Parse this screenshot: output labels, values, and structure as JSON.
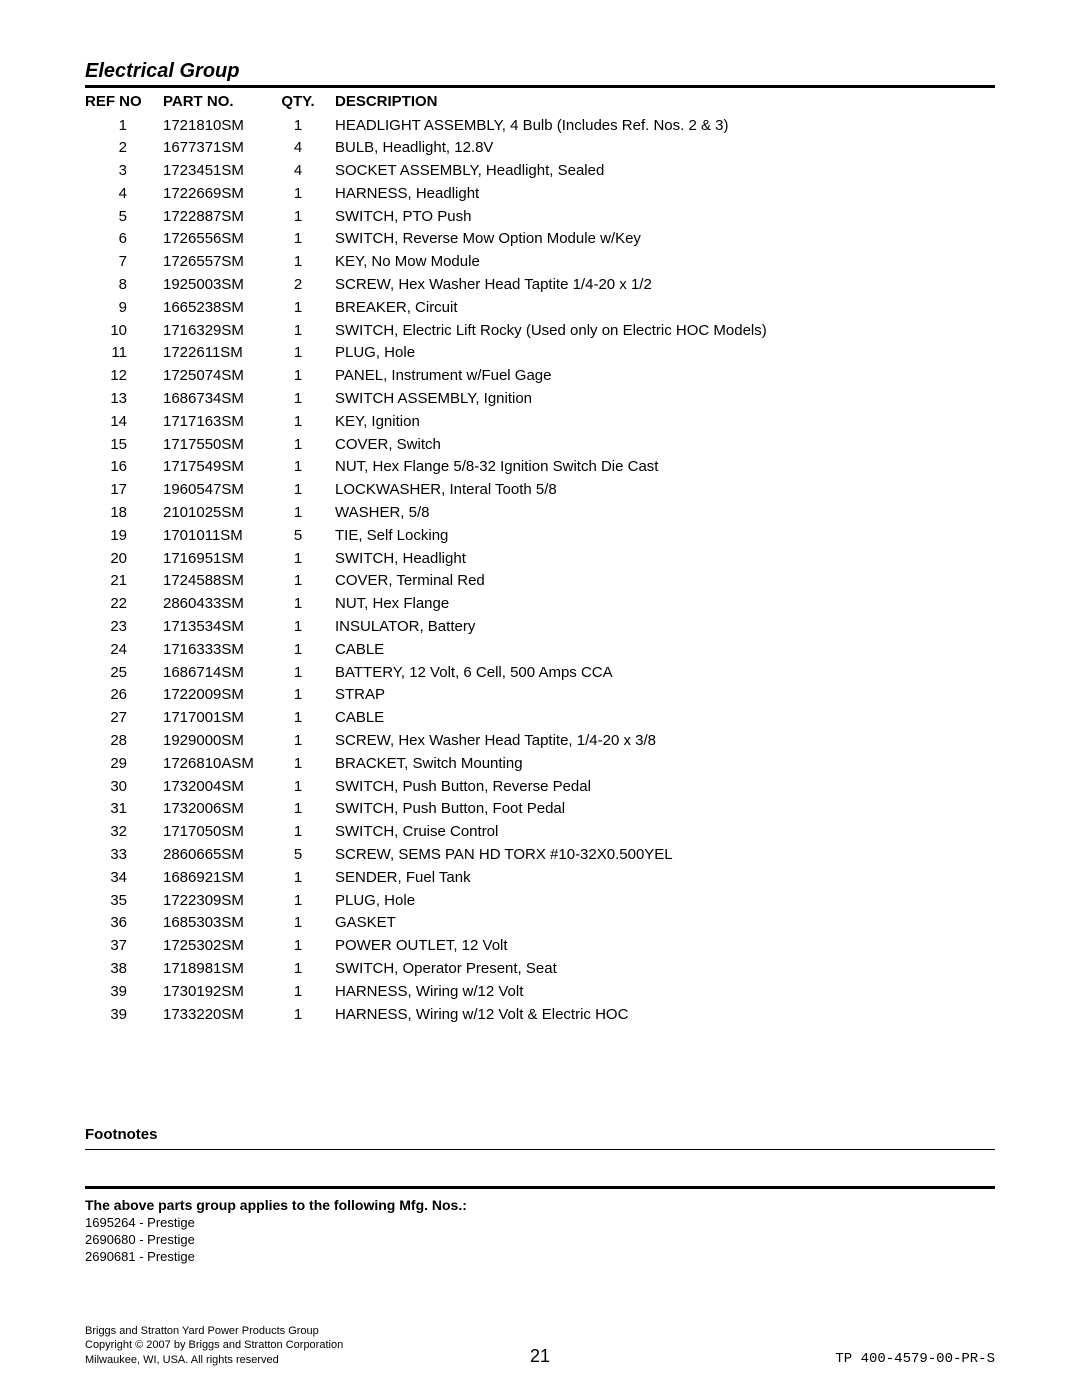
{
  "group_title": "Electrical Group",
  "headers": {
    "refno": "REF NO",
    "partno": "PART NO.",
    "qty": "QTY.",
    "desc": "DESCRIPTION"
  },
  "rows": [
    {
      "ref": "1",
      "part": "1721810SM",
      "qty": "1",
      "desc": "HEADLIGHT ASSEMBLY, 4 Bulb (Includes Ref. Nos. 2 & 3)"
    },
    {
      "ref": "2",
      "part": "1677371SM",
      "qty": "4",
      "desc": "BULB, Headlight, 12.8V"
    },
    {
      "ref": "3",
      "part": "1723451SM",
      "qty": "4",
      "desc": "SOCKET ASSEMBLY, Headlight, Sealed"
    },
    {
      "ref": "4",
      "part": "1722669SM",
      "qty": "1",
      "desc": "HARNESS, Headlight"
    },
    {
      "ref": "5",
      "part": "1722887SM",
      "qty": "1",
      "desc": "SWITCH, PTO Push"
    },
    {
      "ref": "6",
      "part": "1726556SM",
      "qty": "1",
      "desc": "SWITCH, Reverse Mow Option Module w/Key"
    },
    {
      "ref": "7",
      "part": "1726557SM",
      "qty": "1",
      "desc": "KEY, No Mow Module"
    },
    {
      "ref": "8",
      "part": "1925003SM",
      "qty": "2",
      "desc": "SCREW, Hex Washer Head Taptite 1/4-20 x 1/2"
    },
    {
      "ref": "9",
      "part": "1665238SM",
      "qty": "1",
      "desc": "BREAKER, Circuit"
    },
    {
      "ref": "10",
      "part": "1716329SM",
      "qty": "1",
      "desc": "SWITCH, Electric Lift Rocky (Used only on Electric HOC Models)"
    },
    {
      "ref": "11",
      "part": "1722611SM",
      "qty": "1",
      "desc": "PLUG, Hole"
    },
    {
      "ref": "12",
      "part": "1725074SM",
      "qty": "1",
      "desc": "PANEL, Instrument w/Fuel Gage"
    },
    {
      "ref": "13",
      "part": "1686734SM",
      "qty": "1",
      "desc": "SWITCH ASSEMBLY, Ignition"
    },
    {
      "ref": "14",
      "part": "1717163SM",
      "qty": "1",
      "desc": "KEY, Ignition"
    },
    {
      "ref": "15",
      "part": "1717550SM",
      "qty": "1",
      "desc": "COVER, Switch"
    },
    {
      "ref": "16",
      "part": "1717549SM",
      "qty": "1",
      "desc": "NUT, Hex Flange 5/8-32 Ignition Switch Die Cast"
    },
    {
      "ref": "17",
      "part": "1960547SM",
      "qty": "1",
      "desc": "LOCKWASHER, Interal Tooth 5/8"
    },
    {
      "ref": "18",
      "part": "2101025SM",
      "qty": "1",
      "desc": "WASHER, 5/8"
    },
    {
      "ref": "19",
      "part": "1701011SM",
      "qty": "5",
      "desc": "TIE, Self Locking"
    },
    {
      "ref": "20",
      "part": "1716951SM",
      "qty": "1",
      "desc": "SWITCH, Headlight"
    },
    {
      "ref": "21",
      "part": "1724588SM",
      "qty": "1",
      "desc": "COVER, Terminal Red"
    },
    {
      "ref": "22",
      "part": "2860433SM",
      "qty": "1",
      "desc": "NUT, Hex Flange"
    },
    {
      "ref": "23",
      "part": "1713534SM",
      "qty": "1",
      "desc": "INSULATOR, Battery"
    },
    {
      "ref": "24",
      "part": "1716333SM",
      "qty": "1",
      "desc": "CABLE"
    },
    {
      "ref": "25",
      "part": "1686714SM",
      "qty": "1",
      "desc": "BATTERY, 12 Volt, 6 Cell, 500 Amps CCA"
    },
    {
      "ref": "26",
      "part": "1722009SM",
      "qty": "1",
      "desc": "STRAP"
    },
    {
      "ref": "27",
      "part": "1717001SM",
      "qty": "1",
      "desc": "CABLE"
    },
    {
      "ref": "28",
      "part": "1929000SM",
      "qty": "1",
      "desc": "SCREW, Hex Washer Head Taptite, 1/4-20 x 3/8"
    },
    {
      "ref": "29",
      "part": "1726810ASM",
      "qty": "1",
      "desc": "BRACKET, Switch Mounting"
    },
    {
      "ref": "30",
      "part": "1732004SM",
      "qty": "1",
      "desc": "SWITCH, Push Button, Reverse Pedal"
    },
    {
      "ref": "31",
      "part": "1732006SM",
      "qty": "1",
      "desc": "SWITCH, Push Button, Foot Pedal"
    },
    {
      "ref": "32",
      "part": "1717050SM",
      "qty": "1",
      "desc": "SWITCH, Cruise Control"
    },
    {
      "ref": "33",
      "part": "2860665SM",
      "qty": "5",
      "desc": "SCREW, SEMS PAN HD TORX #10-32X0.500YEL"
    },
    {
      "ref": "34",
      "part": "1686921SM",
      "qty": "1",
      "desc": "SENDER, Fuel Tank"
    },
    {
      "ref": "35",
      "part": "1722309SM",
      "qty": "1",
      "desc": "PLUG, Hole"
    },
    {
      "ref": "36",
      "part": "1685303SM",
      "qty": "1",
      "desc": "GASKET"
    },
    {
      "ref": "37",
      "part": "1725302SM",
      "qty": "1",
      "desc": "POWER OUTLET, 12 Volt"
    },
    {
      "ref": "38",
      "part": "1718981SM",
      "qty": "1",
      "desc": "SWITCH, Operator Present, Seat"
    },
    {
      "ref": "39",
      "part": "1730192SM",
      "qty": "1",
      "desc": "HARNESS, Wiring w/12 Volt"
    },
    {
      "ref": "39",
      "part": "1733220SM",
      "qty": "1",
      "desc": "HARNESS, Wiring w/12 Volt & Electric HOC"
    }
  ],
  "footnotes_label": "Footnotes",
  "applies_note": "The above parts group applies to the following Mfg. Nos.:",
  "mfg_nos": [
    "1695264 - Prestige",
    "2690680 - Prestige",
    "2690681 - Prestige"
  ],
  "footer": {
    "line1": "Briggs and Stratton Yard Power Products Group",
    "line2": "Copyright © 2007 by Briggs and Stratton Corporation",
    "line3": "Milwaukee, WI, USA. All rights reserved",
    "page_number": "21",
    "doc_code": "TP 400-4579-00-PR-S"
  }
}
